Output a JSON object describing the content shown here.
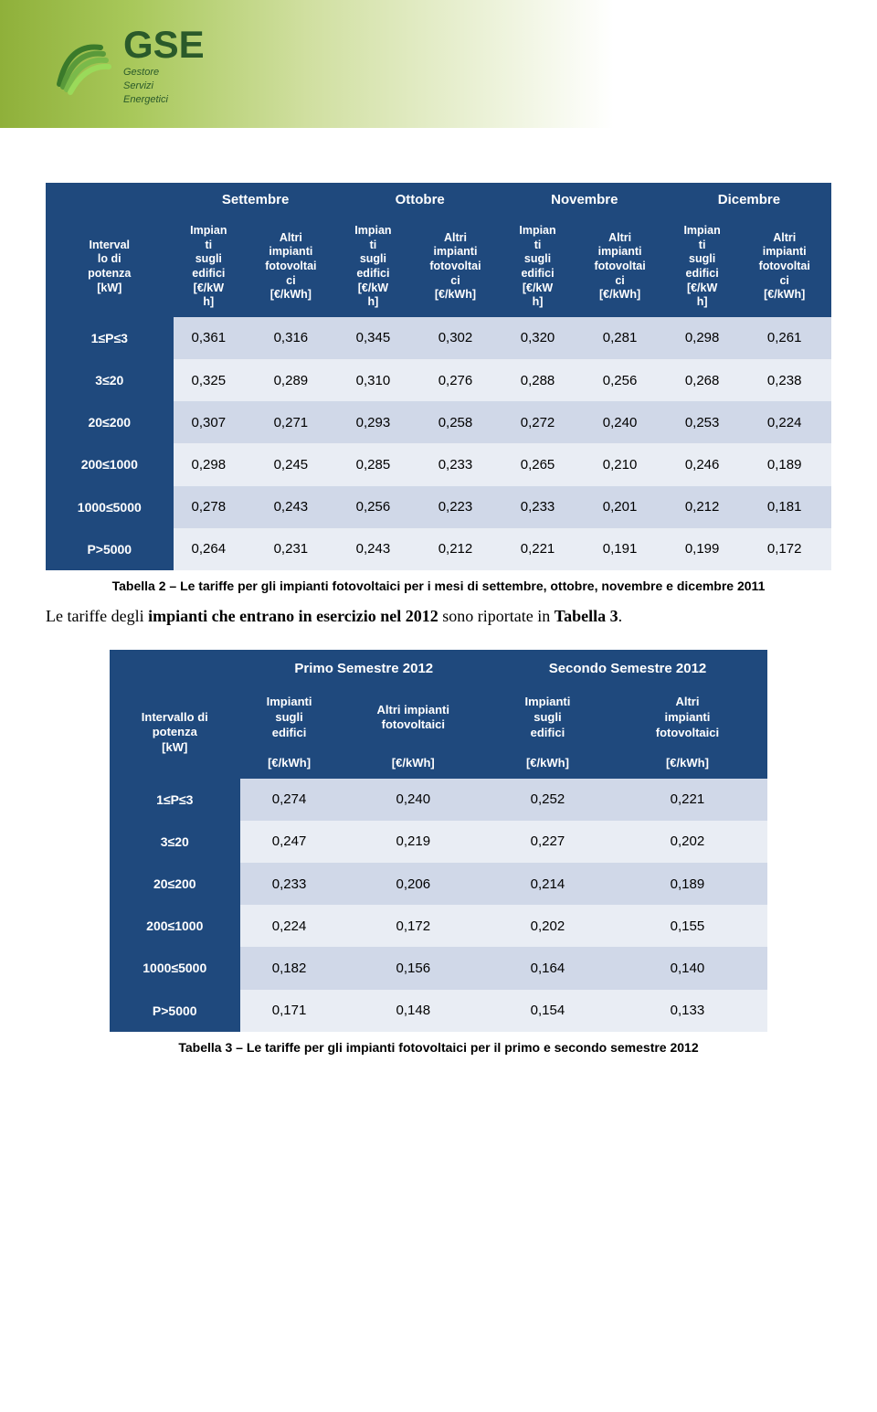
{
  "logo": {
    "main": "GSE",
    "sub1": "Gestore",
    "sub2": "Servizi",
    "sub3": "Energetici"
  },
  "table1": {
    "months": [
      "Settembre",
      "Ottobre",
      "Novembre",
      "Dicembre"
    ],
    "row_header_label": "Intervallo di potenza [kW]",
    "col_impianti": "Impianti sugli edifici [€/kWh]",
    "col_altri": "Altri impianti fotovoltaici [€/kWh]",
    "rows": [
      {
        "label": "1≤P≤3",
        "vals": [
          "0,361",
          "0,316",
          "0,345",
          "0,302",
          "0,320",
          "0,281",
          "0,298",
          "0,261"
        ]
      },
      {
        "label": "3<P ≤20",
        "vals": [
          "0,325",
          "0,289",
          "0,310",
          "0,276",
          "0,288",
          "0,256",
          "0,268",
          "0,238"
        ]
      },
      {
        "label": "20<P ≤200",
        "vals": [
          "0,307",
          "0,271",
          "0,293",
          "0,258",
          "0,272",
          "0,240",
          "0,253",
          "0,224"
        ]
      },
      {
        "label": "200<P ≤1000",
        "vals": [
          "0,298",
          "0,245",
          "0,285",
          "0,233",
          "0,265",
          "0,210",
          "0,246",
          "0,189"
        ]
      },
      {
        "label": "1000<P ≤5000",
        "vals": [
          "0,278",
          "0,243",
          "0,256",
          "0,223",
          "0,233",
          "0,201",
          "0,212",
          "0,181"
        ]
      },
      {
        "label": "P>5000",
        "vals": [
          "0,264",
          "0,231",
          "0,243",
          "0,212",
          "0,221",
          "0,191",
          "0,199",
          "0,172"
        ]
      }
    ],
    "caption": "Tabella 2 – Le tariffe per gli impianti fotovoltaici per i mesi di settembre, ottobre, novembre e dicembre 2011"
  },
  "paragraph": "Le tariffe degli impianti che entrano in esercizio nel 2012 sono riportate in Tabella 3.",
  "table2": {
    "semesters": [
      "Primo Semestre 2012",
      "Secondo Semestre 2012"
    ],
    "row_header_label": "Intervallo di potenza [kW]",
    "col_impianti_line1": "Impianti sugli edifici",
    "col_altri_line1": "Altri impianti fotovoltaici",
    "unit": "[€/kWh]",
    "rows": [
      {
        "label": "1≤P≤3",
        "vals": [
          "0,274",
          "0,240",
          "0,252",
          "0,221"
        ]
      },
      {
        "label": "3<P ≤20",
        "vals": [
          "0,247",
          "0,219",
          "0,227",
          "0,202"
        ]
      },
      {
        "label": "20<P ≤200",
        "vals": [
          "0,233",
          "0,206",
          "0,214",
          "0,189"
        ]
      },
      {
        "label": "200<P ≤1000",
        "vals": [
          "0,224",
          "0,172",
          "0,202",
          "0,155"
        ]
      },
      {
        "label": "1000<P ≤5000",
        "vals": [
          "0,182",
          "0,156",
          "0,164",
          "0,140"
        ]
      },
      {
        "label": "P>5000",
        "vals": [
          "0,171",
          "0,148",
          "0,154",
          "0,133"
        ]
      }
    ],
    "caption": "Tabella 3 – Le tariffe per gli impianti fotovoltaici per il primo e secondo semestre 2012"
  },
  "style": {
    "header_bg": "#1f497d",
    "row_odd_bg": "#d0d8e8",
    "row_even_bg": "#e9edf4",
    "header_fg": "#ffffff",
    "body_font": "Arial",
    "caption_font": "Verdana",
    "para_font": "Times New Roman"
  }
}
